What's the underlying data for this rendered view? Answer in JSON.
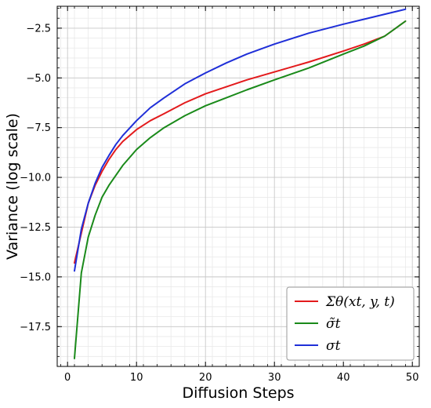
{
  "chart_data": {
    "type": "line",
    "xlabel": "Diffusion Steps",
    "ylabel": "Variance (log scale)",
    "xlim": [
      -1.5,
      51
    ],
    "ylim": [
      -19.5,
      -1.4
    ],
    "grid": true,
    "legend_position": "lower-right",
    "x_ticks": [
      0,
      10,
      20,
      30,
      40,
      50
    ],
    "y_ticks": [
      -17.5,
      -15.0,
      -12.5,
      -10.0,
      -7.5,
      -5.0,
      -2.5
    ],
    "x_tick_labels": [
      "0",
      "10",
      "20",
      "30",
      "40",
      "50"
    ],
    "y_tick_labels": [
      "−17.5",
      "−15.0",
      "−12.5",
      "−10.0",
      "−7.5",
      "−5.0",
      "−2.5"
    ],
    "series": [
      {
        "name": "Σθ(xt, y, t)",
        "color": "#e31a1c",
        "x": [
          1,
          2,
          3,
          4,
          5,
          6,
          7,
          8,
          10,
          12,
          14,
          17,
          20,
          23,
          26,
          30,
          35,
          40,
          43,
          46,
          49
        ],
        "y": [
          -14.3,
          -12.8,
          -11.3,
          -10.4,
          -9.7,
          -9.1,
          -8.6,
          -8.2,
          -7.6,
          -7.15,
          -6.8,
          -6.25,
          -5.8,
          -5.45,
          -5.1,
          -4.7,
          -4.2,
          -3.65,
          -3.3,
          -2.9,
          -2.15
        ]
      },
      {
        "name": "σ̃t",
        "color": "#1a8a1a",
        "x": [
          1,
          2,
          3,
          4,
          5,
          6,
          7,
          8,
          10,
          12,
          14,
          17,
          20,
          23,
          26,
          30,
          35,
          40,
          43,
          46,
          49
        ],
        "y": [
          -19.1,
          -14.8,
          -13.0,
          -11.9,
          -11.0,
          -10.4,
          -9.9,
          -9.4,
          -8.6,
          -8.0,
          -7.5,
          -6.9,
          -6.4,
          -6.0,
          -5.6,
          -5.1,
          -4.5,
          -3.8,
          -3.4,
          -2.9,
          -2.15
        ]
      },
      {
        "name": "σt",
        "color": "#1f2fd8",
        "x": [
          1,
          2,
          3,
          4,
          5,
          6,
          7,
          8,
          10,
          12,
          14,
          17,
          20,
          23,
          26,
          30,
          35,
          40,
          43,
          46,
          49
        ],
        "y": [
          -14.7,
          -12.6,
          -11.3,
          -10.3,
          -9.5,
          -8.9,
          -8.35,
          -7.9,
          -7.15,
          -6.5,
          -6.0,
          -5.3,
          -4.75,
          -4.25,
          -3.8,
          -3.3,
          -2.75,
          -2.3,
          -2.05,
          -1.8,
          -1.55
        ]
      }
    ]
  }
}
